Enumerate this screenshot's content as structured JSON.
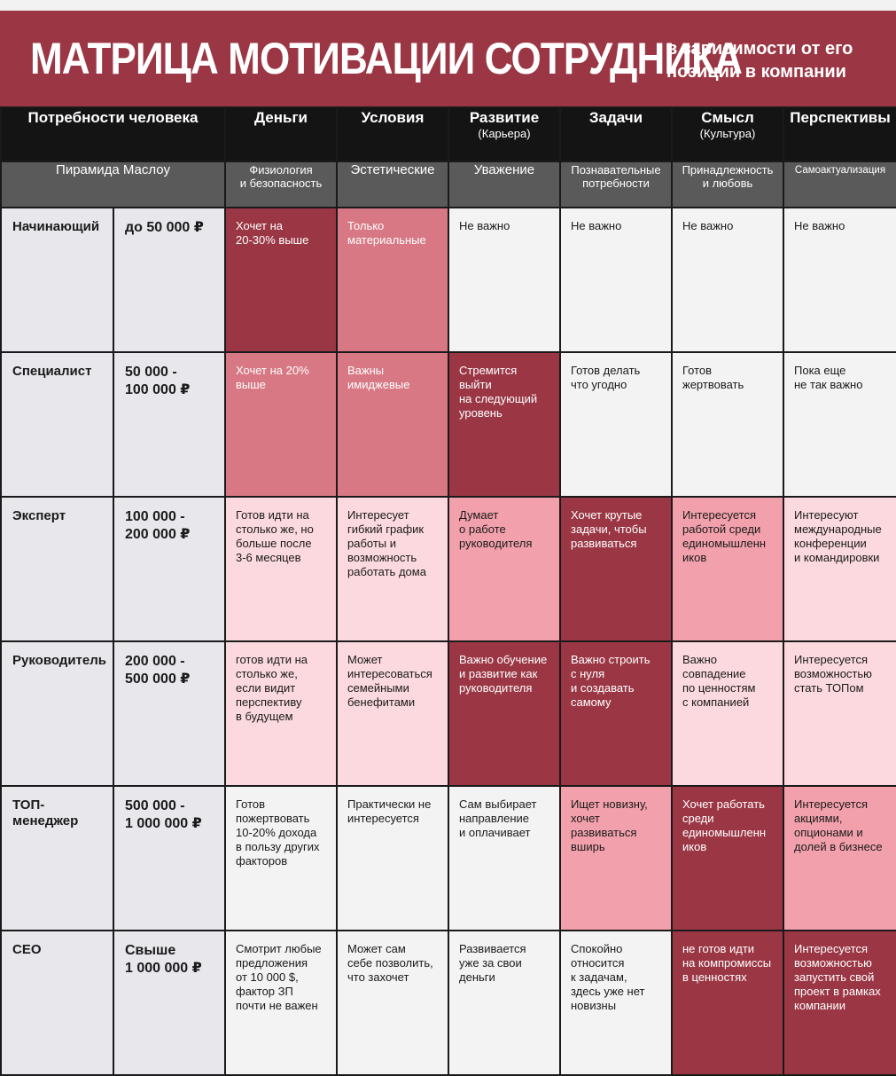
{
  "banner": {
    "title": "МАТРИЦА МОТИВАЦИИ СОТРУДНИКА",
    "subtitle_line1": "в зависимости от его",
    "subtitle_line2": "позиции в компании"
  },
  "header": {
    "needs_label": "Потребности человека",
    "columns": [
      {
        "title": "Деньги",
        "sub": ""
      },
      {
        "title": "Условия",
        "sub": ""
      },
      {
        "title": "Развитие",
        "sub": "(Карьера)"
      },
      {
        "title": "Задачи",
        "sub": ""
      },
      {
        "title": "Смысл",
        "sub": "(Культура)"
      },
      {
        "title": "Перспективы",
        "sub": ""
      }
    ]
  },
  "maslow": {
    "label": "Пирамида Маслоу",
    "levels": [
      "Физиология\nи безопасность",
      "Эстетические",
      "Уважение",
      "Познавательные\nпотребности",
      "Принадлежность\nи любовь",
      "Самоактуализация"
    ]
  },
  "rows": [
    {
      "role": "Начинающий",
      "salary": "до 50 000 ₽",
      "cells": [
        {
          "text": "Хочет на\n20-30% выше",
          "level": 4
        },
        {
          "text": "Только\nматериальные",
          "level": 3
        },
        {
          "text": "Не важно",
          "level": 0
        },
        {
          "text": "Не важно",
          "level": 0
        },
        {
          "text": "Не важно",
          "level": 0
        },
        {
          "text": "Не важно",
          "level": 0
        }
      ]
    },
    {
      "role": "Специалист",
      "salary": "50 000 -\n100 000 ₽",
      "cells": [
        {
          "text": "Хочет на 20%\nвыше",
          "level": 3
        },
        {
          "text": "Важны\nимиджевые",
          "level": 3
        },
        {
          "text": "Стремится\nвыйти\nна следующий\nуровень",
          "level": 4
        },
        {
          "text": "Готов делать\nчто угодно",
          "level": 0
        },
        {
          "text": "Готов\nжертвовать",
          "level": 0
        },
        {
          "text": "Пока еще\nне так важно",
          "level": 0
        }
      ]
    },
    {
      "role": "Эксперт",
      "salary": "100 000 -\n200 000 ₽",
      "cells": [
        {
          "text": "Готов идти на\nстолько же, но\nбольше после\n3-6 месяцев",
          "level": 1
        },
        {
          "text": "Интересует\nгибкий график\nработы и\nвозможность\nработать дома",
          "level": 1
        },
        {
          "text": "Думает\nо работе\nруководителя",
          "level": 2
        },
        {
          "text": "Хочет крутые\nзадачи, чтобы\nразвиваться",
          "level": 4
        },
        {
          "text": "Интересуется\nработой среди\nединомышленн\nиков",
          "level": 2
        },
        {
          "text": "Интересуют\nмеждународные\nконференции\nи командировки",
          "level": 1
        }
      ]
    },
    {
      "role": "Руководитель",
      "salary": "200 000 -\n500 000 ₽",
      "cells": [
        {
          "text": "готов идти на\nстолько же,\nесли видит\nперспективу\nв будущем",
          "level": 1
        },
        {
          "text": "Может\nинтересоваться\nсемейными\nбенефитами",
          "level": 1
        },
        {
          "text": "Важно обучение\nи развитие как\nруководителя",
          "level": 4
        },
        {
          "text": "Важно строить\nс нуля\nи создавать\nсамому",
          "level": 4
        },
        {
          "text": "Важно\nсовпадение\nпо ценностям\nс компанией",
          "level": 1
        },
        {
          "text": "Интересуется\nвозможностью\nстать ТОПом",
          "level": 1
        }
      ]
    },
    {
      "role": "ТОП-\nменеджер",
      "salary": "500 000 -\n1 000 000 ₽",
      "cells": [
        {
          "text": "Готов\nпожертвовать\n10-20% дохода\nв пользу других\nфакторов",
          "level": 0
        },
        {
          "text": "Практически не\nинтересуется",
          "level": 0
        },
        {
          "text": "Сам выбирает\nнаправление\nи оплачивает",
          "level": 0
        },
        {
          "text": "Ищет новизну,\nхочет\nразвиваться\nвширь",
          "level": 2
        },
        {
          "text": "Хочет работать\nсреди\nединомышленн\nиков",
          "level": 4
        },
        {
          "text": "Интересуется\nакциями,\nопционами и\nдолей в бизнесе",
          "level": 2
        }
      ]
    },
    {
      "role": "CEO",
      "salary": "Свыше\n1 000 000 ₽",
      "cells": [
        {
          "text": "Смотрит любые\nпредложения\nот 10 000 $,\nфактор ЗП\nпочти не важен",
          "level": 0
        },
        {
          "text": "Может сам\nсебе позволить,\nчто захочет",
          "level": 0
        },
        {
          "text": "Развивается\nуже за свои\nденьги",
          "level": 0
        },
        {
          "text": "Спокойно\nотносится\nк задачам,\nздесь уже нет\nновизны",
          "level": 0
        },
        {
          "text": "не готов идти\nна компромиссы\nв ценностях",
          "level": 4
        },
        {
          "text": "Интересуется\nвозможностью\nзапустить свой\nпроект в рамках\nкомпании",
          "level": 4
        }
      ]
    }
  ]
}
